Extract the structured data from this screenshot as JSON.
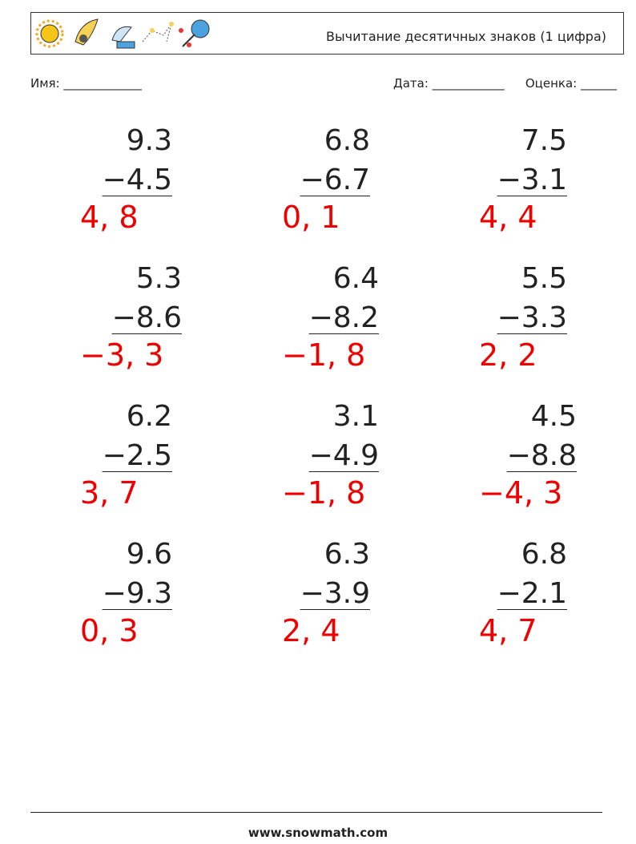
{
  "header": {
    "title": "Вычитание десятичных знаков (1 цифра)"
  },
  "fields": {
    "name": "Имя: _____________",
    "date": "Дата: ____________",
    "score": "Оценка: ______"
  },
  "problems": [
    {
      "top": "9.3",
      "bottom": "−4.5",
      "answer": "4, 8"
    },
    {
      "top": "6.8",
      "bottom": "−6.7",
      "answer": "0, 1"
    },
    {
      "top": "7.5",
      "bottom": "−3.1",
      "answer": "4, 4"
    },
    {
      "top": "5.3",
      "bottom": "−8.6",
      "answer": "−3, 3"
    },
    {
      "top": "6.4",
      "bottom": "−8.2",
      "answer": "−1, 8"
    },
    {
      "top": "5.5",
      "bottom": "−3.3",
      "answer": "2, 2"
    },
    {
      "top": "6.2",
      "bottom": "−2.5",
      "answer": "3, 7"
    },
    {
      "top": "3.1",
      "bottom": "−4.9",
      "answer": "−1, 8"
    },
    {
      "top": "4.5",
      "bottom": "−8.8",
      "answer": "−4, 3"
    },
    {
      "top": "9.6",
      "bottom": "−9.3",
      "answer": "0, 3"
    },
    {
      "top": "6.3",
      "bottom": "−3.9",
      "answer": "2, 4"
    },
    {
      "top": "6.8",
      "bottom": "−2.1",
      "answer": "4, 7"
    }
  ],
  "footer": {
    "site": "www.snowmath.com"
  }
}
